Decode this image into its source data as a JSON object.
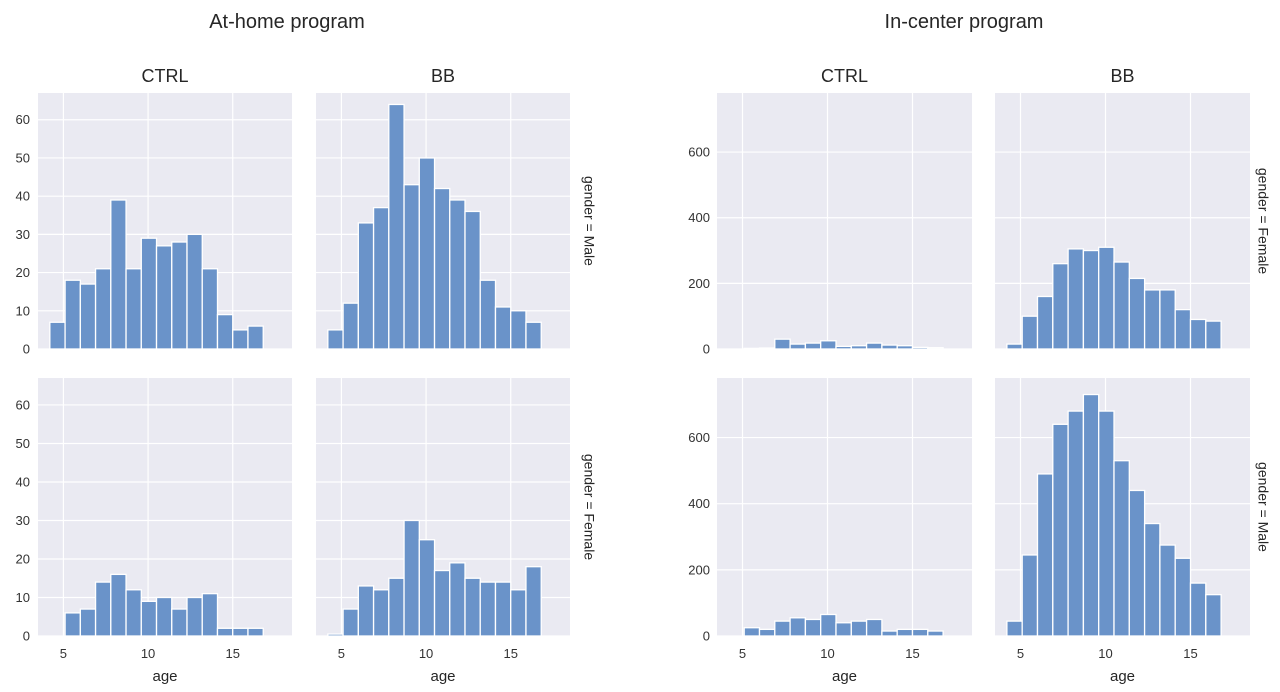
{
  "chart_data": [
    {
      "type": "bar",
      "group_title": "At-home program",
      "col_titles": [
        "CTRL",
        "BB"
      ],
      "row_labels": [
        "gender = Male",
        "gender = Female"
      ],
      "xlabel": "age",
      "xlim": [
        3.5,
        18.5
      ],
      "ylim": [
        0,
        67
      ],
      "xticks": [
        5,
        10,
        15
      ],
      "yticks": [
        0,
        10,
        20,
        30,
        40,
        50,
        60
      ],
      "bar_color": "#6a93c9",
      "bin_start": 4.2,
      "bin_width": 0.9,
      "panels": [
        {
          "col": "CTRL",
          "row": "gender = Male",
          "values": [
            7,
            18,
            17,
            21,
            39,
            21,
            29,
            27,
            28,
            30,
            21,
            9,
            5,
            6
          ]
        },
        {
          "col": "BB",
          "row": "gender = Male",
          "values": [
            5,
            12,
            33,
            37,
            64,
            43,
            50,
            42,
            39,
            36,
            18,
            11,
            10,
            7
          ]
        },
        {
          "col": "CTRL",
          "row": "gender = Female",
          "values": [
            0,
            6,
            7,
            14,
            16,
            12,
            9,
            10,
            7,
            10,
            11,
            2,
            2,
            2
          ]
        },
        {
          "col": "BB",
          "row": "gender = Female",
          "values": [
            0.5,
            7,
            13,
            12,
            15,
            30,
            25,
            17,
            19,
            15,
            14,
            14,
            12,
            18
          ]
        }
      ]
    },
    {
      "type": "bar",
      "group_title": "In-center program",
      "col_titles": [
        "CTRL",
        "BB"
      ],
      "row_labels": [
        "gender = Female",
        "gender = Male"
      ],
      "xlabel": "age",
      "xlim": [
        3.5,
        18.5
      ],
      "ylim": [
        0,
        780
      ],
      "xticks": [
        5,
        10,
        15
      ],
      "yticks": [
        0,
        200,
        400,
        600
      ],
      "bar_color": "#6a93c9",
      "bin_start": 4.2,
      "bin_width": 0.9,
      "panels": [
        {
          "col": "CTRL",
          "row": "gender = Female",
          "values": [
            0,
            2,
            3,
            30,
            15,
            18,
            25,
            8,
            10,
            18,
            12,
            10,
            5,
            4
          ]
        },
        {
          "col": "BB",
          "row": "gender = Female",
          "values": [
            15,
            100,
            160,
            260,
            305,
            300,
            310,
            265,
            215,
            180,
            180,
            120,
            90,
            85
          ]
        },
        {
          "col": "CTRL",
          "row": "gender = Male",
          "values": [
            0,
            25,
            20,
            45,
            55,
            50,
            65,
            40,
            45,
            50,
            15,
            20,
            20,
            15
          ]
        },
        {
          "col": "BB",
          "row": "gender = Male",
          "values": [
            45,
            245,
            490,
            640,
            680,
            730,
            680,
            530,
            440,
            340,
            275,
            235,
            160,
            125
          ]
        }
      ]
    }
  ]
}
